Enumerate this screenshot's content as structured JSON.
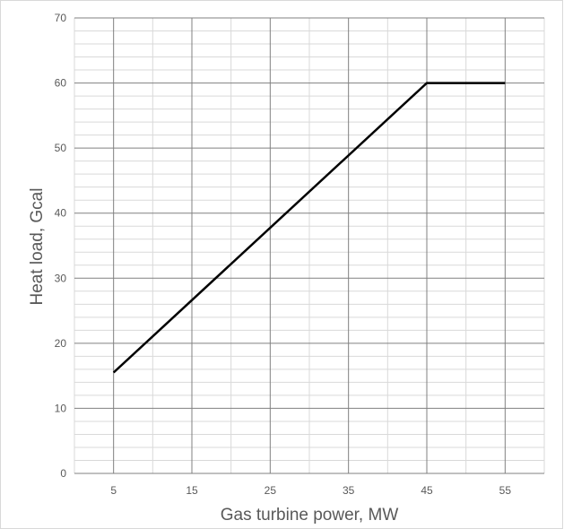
{
  "chart_data": {
    "type": "line",
    "title": "",
    "xlabel": "Gas turbine power,  MW",
    "ylabel": "Heat load, Gcal",
    "xlim": [
      0,
      60
    ],
    "ylim": [
      0,
      70
    ],
    "x_ticks": [
      5,
      15,
      25,
      35,
      45,
      55
    ],
    "x_tick_labels": [
      "5",
      "15",
      "25",
      "35",
      "45",
      "55"
    ],
    "y_ticks": [
      0,
      10,
      20,
      30,
      40,
      50,
      60,
      70
    ],
    "y_tick_labels": [
      "0",
      "10",
      "20",
      "30",
      "40",
      "50",
      "60",
      "70"
    ],
    "grid": true,
    "legend": "none",
    "series": [
      {
        "x": [
          5,
          45,
          55
        ],
        "y": [
          15.5,
          60,
          60
        ],
        "color": "#000000"
      }
    ],
    "colors": {
      "major_grid": "#808080",
      "minor_grid": "#d9d9d9",
      "line": "#000000",
      "text": "#595959",
      "frame": "#d9d9d9"
    }
  }
}
